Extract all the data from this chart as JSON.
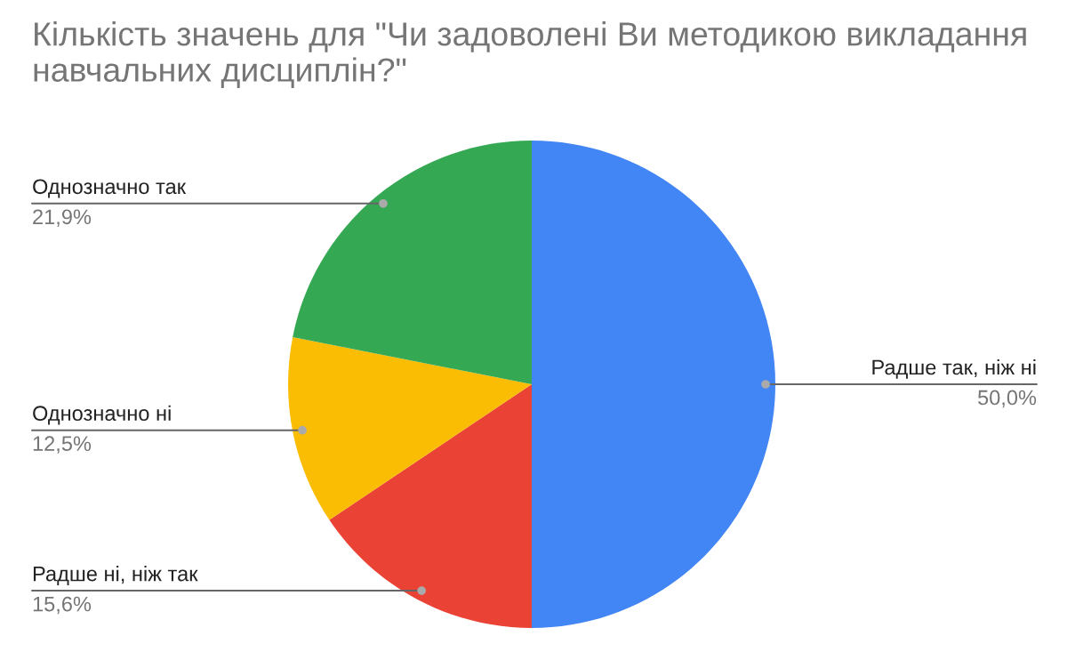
{
  "chart_data": {
    "type": "pie",
    "title": "Кількість значень для \"Чи задоволені Ви методикою викладання навчальних дисциплін?\"",
    "categories": [
      "Радше так, ніж ні",
      "Радше ні, ніж так",
      "Однозначно ні",
      "Однозначно так"
    ],
    "values": [
      50.0,
      15.6,
      12.5,
      21.9
    ],
    "colors": [
      "#4285f4",
      "#ea4335",
      "#fbbc04",
      "#34a853"
    ],
    "value_labels": [
      "50,0%",
      "15,6%",
      "12,5%",
      "21,9%"
    ]
  }
}
